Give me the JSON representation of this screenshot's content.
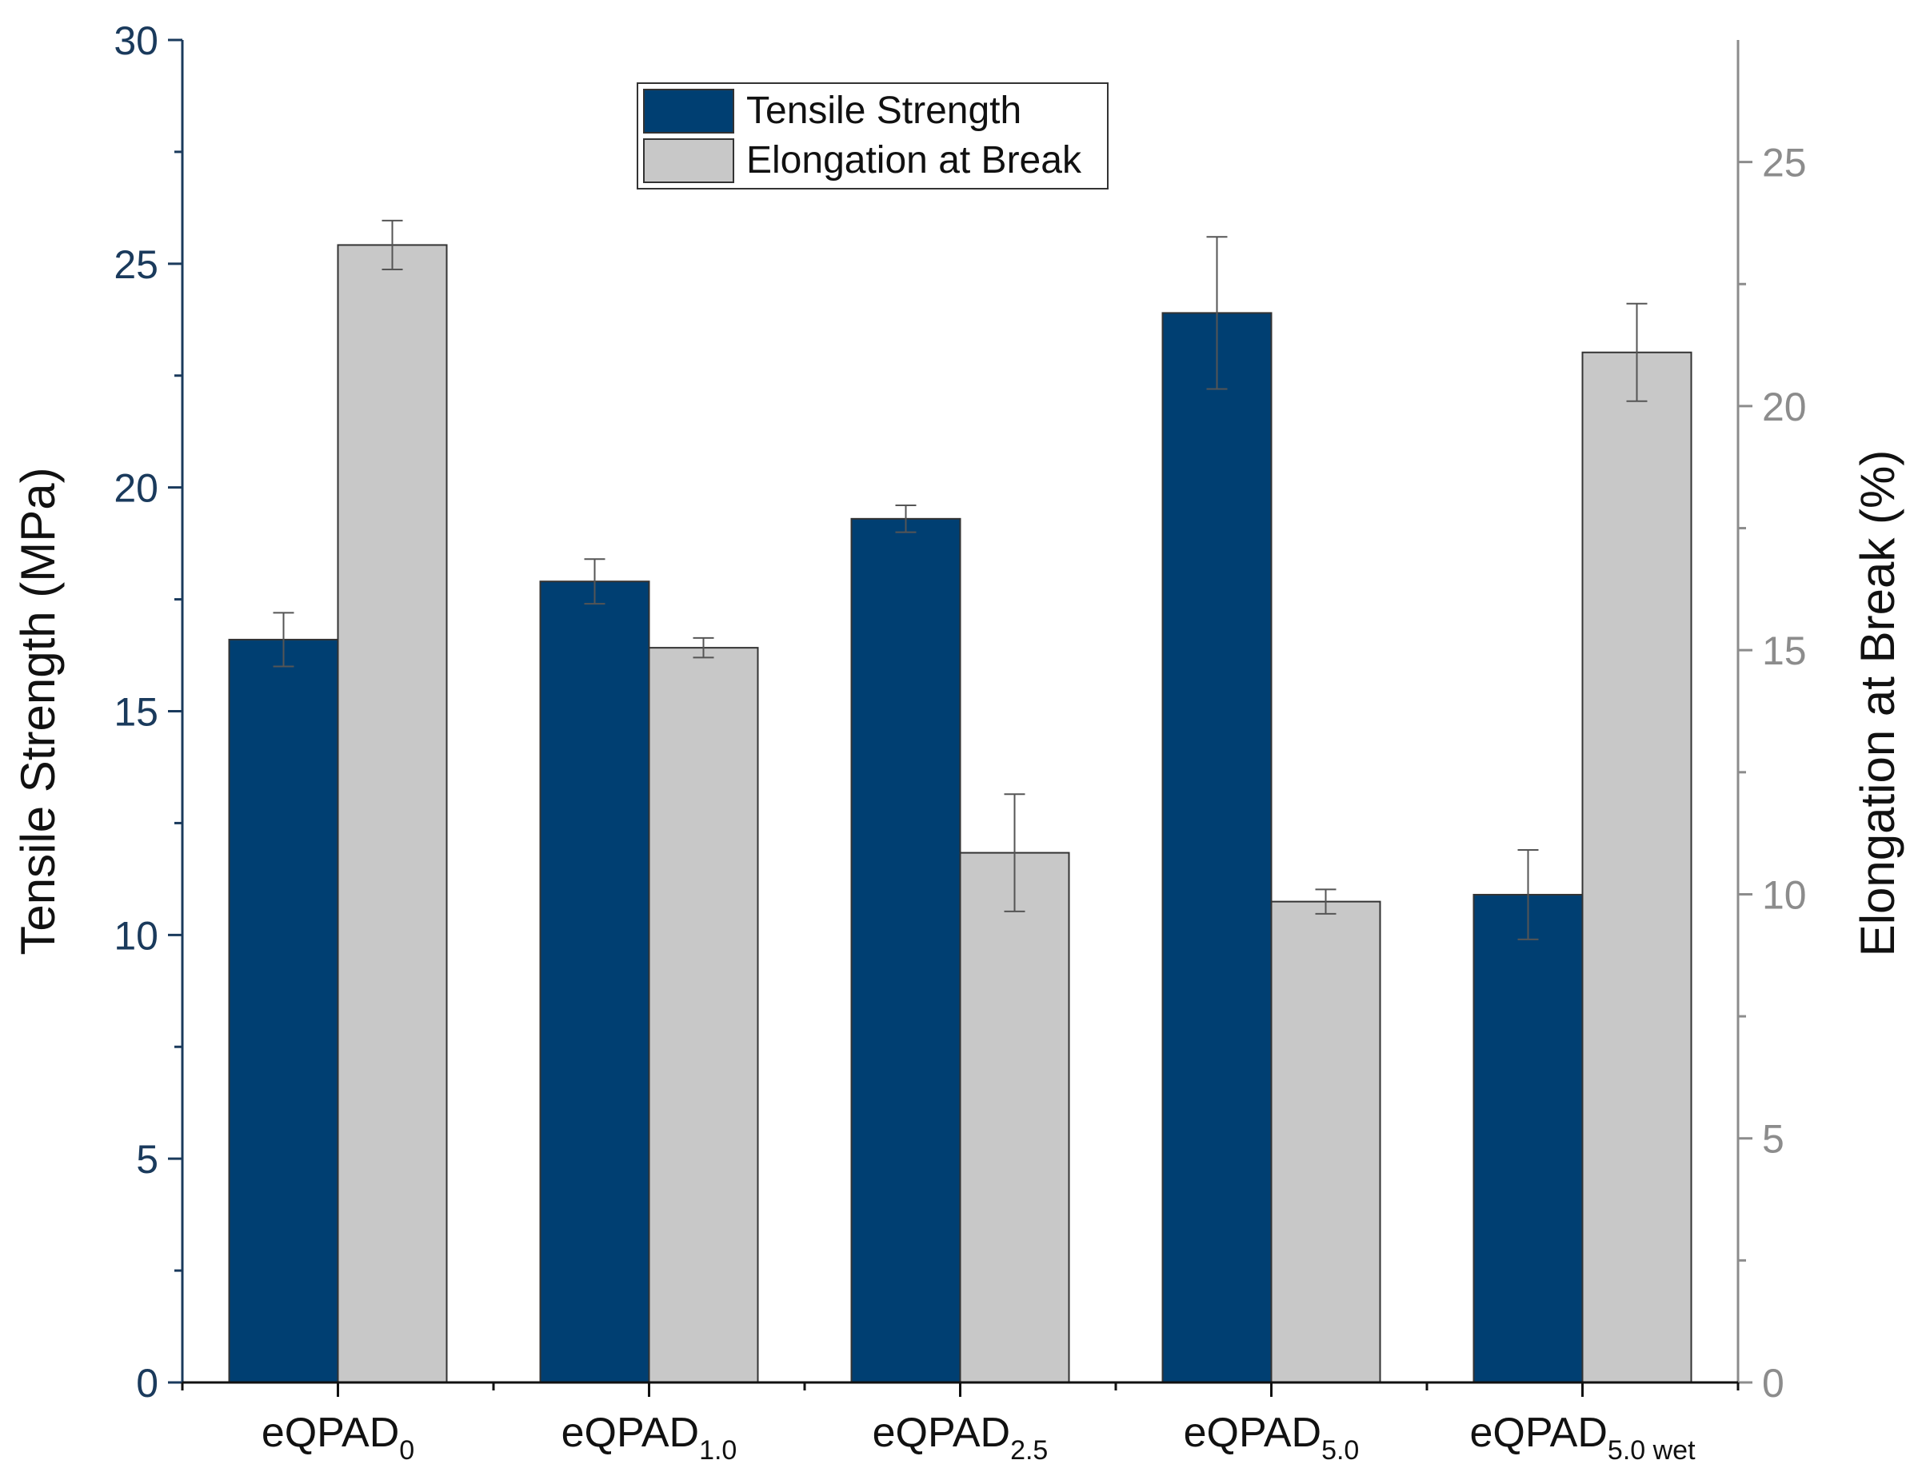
{
  "chart_data": {
    "type": "bar",
    "categories": [
      {
        "base": "eQPAD",
        "sub": "0"
      },
      {
        "base": "eQPAD",
        "sub": "1.0"
      },
      {
        "base": "eQPAD",
        "sub": "2.5"
      },
      {
        "base": "eQPAD",
        "sub": "5.0"
      },
      {
        "base": "eQPAD",
        "sub": "5.0 wet"
      }
    ],
    "series": [
      {
        "name": "Tensile Strength",
        "axis": "left",
        "color": "#003f72",
        "values": [
          16.6,
          17.9,
          19.3,
          23.9,
          10.9
        ],
        "errors": [
          0.6,
          0.5,
          0.3,
          1.7,
          1.0
        ]
      },
      {
        "name": "Elongation at Break",
        "axis": "right",
        "color": "#c8c8c8",
        "values": [
          23.3,
          15.05,
          10.85,
          9.85,
          21.1
        ],
        "errors": [
          0.5,
          0.2,
          1.2,
          0.25,
          1.0
        ]
      }
    ],
    "ylabel": "Tensile Strength (MPa)",
    "ylim": [
      0,
      30
    ],
    "yticks": [
      0,
      5,
      10,
      15,
      20,
      25,
      30
    ],
    "ylabel_right": "Elongation at Break (%)",
    "ylim_right": [
      0,
      27.5
    ],
    "yticks_right": [
      0,
      5,
      10,
      15,
      20,
      25
    ],
    "xlabel": "",
    "legend_position": "top-center",
    "grid": false,
    "left_axis_color": "#1a3a5c",
    "right_axis_color": "#8c8c8c"
  }
}
